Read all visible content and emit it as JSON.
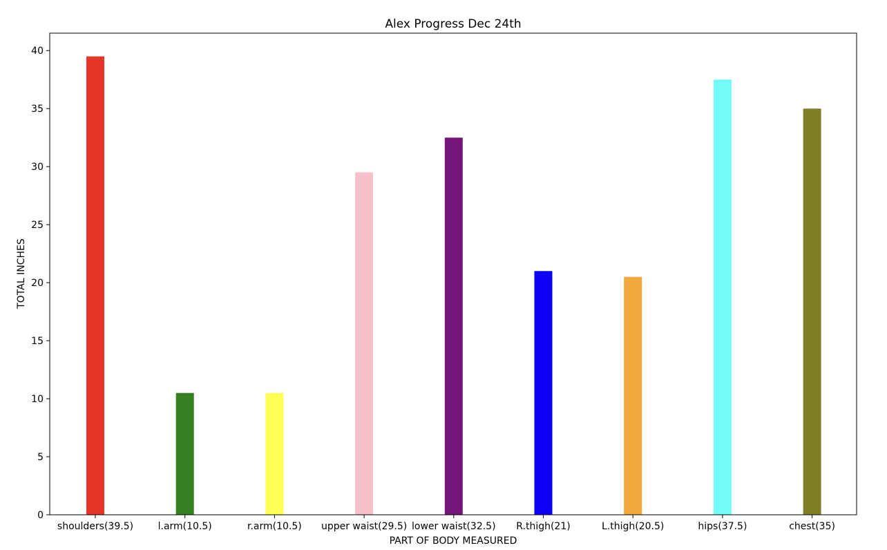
{
  "chart_data": {
    "type": "bar",
    "title": "Alex Progress Dec 24th",
    "xlabel": "PART OF BODY MEASURED",
    "ylabel": "TOTAL INCHES",
    "categories": [
      "shoulders(39.5)",
      "l.arm(10.5)",
      "r.arm(10.5)",
      "upper waist(29.5)",
      "lower waist(32.5)",
      "R.thigh(21)",
      "L.thigh(20.5)",
      "hips(37.5)",
      "chest(35)"
    ],
    "values": [
      39.5,
      10.5,
      10.5,
      29.5,
      32.5,
      21,
      20.5,
      37.5,
      35
    ],
    "colors": [
      "#e8352a",
      "#377f23",
      "#ffff55",
      "#f5c0ca",
      "#741577",
      "#0c00f5",
      "#f0a73c",
      "#72fbf7",
      "#7f7f28"
    ],
    "yticks": [
      0,
      5,
      10,
      15,
      20,
      25,
      30,
      35,
      40
    ],
    "ylim": [
      0,
      41.5
    ],
    "grid": false,
    "legend": "none"
  }
}
